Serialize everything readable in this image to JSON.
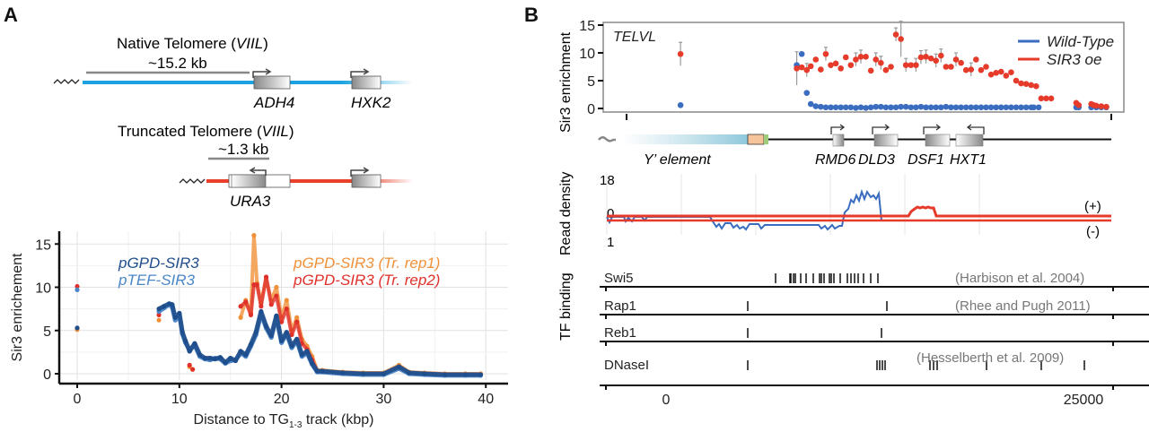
{
  "panel_a": {
    "label": "A",
    "native": {
      "title": "Native Telomere (",
      "title_ital": "VIIL",
      "title_end": ")",
      "distance": "~15.2 kb",
      "genes": [
        "ADH4",
        "HXK2"
      ],
      "color": "#1aa3e0"
    },
    "truncated": {
      "title": "Truncated Telomere (",
      "title_ital": "VIIL",
      "title_end": ")",
      "distance": "~1.3 kb",
      "genes": [
        "URA3"
      ],
      "color": "#e8402a"
    }
  },
  "panel_b": {
    "label": "B",
    "locus_label": "TELVL",
    "y_label_top": "Sir3 enrichment",
    "y_label_mid": "Read density",
    "y_label_bot": "TF binding",
    "legend": [
      {
        "name": "Wild-Type",
        "color": "#3a6dbf"
      },
      {
        "name": "SIR3 oe",
        "color": "#e63a2a"
      }
    ],
    "y_ticks_top": [
      "15",
      "10",
      "5",
      "0"
    ],
    "gene_map": {
      "y_element": "Y’ element",
      "genes": [
        "RMD6",
        "DLD3",
        "DSF1",
        "HXT1"
      ]
    },
    "read_density": {
      "ticks": [
        "18",
        "0",
        "1"
      ],
      "strand_plus": "(+)",
      "strand_minus": "(-)"
    },
    "tf_tracks": [
      {
        "name": "Swi5",
        "source": "(Harbison et al. 2004)"
      },
      {
        "name": "Rap1",
        "source": "(Rhee and Pugh 2011)"
      },
      {
        "name": "Reb1",
        "source": ""
      },
      {
        "name": "DNaseI",
        "source": "(Hesselberth et al. 2009)"
      }
    ],
    "x_ticks": [
      "0",
      "25000"
    ]
  },
  "chart_data": [
    {
      "type": "line",
      "title": "",
      "xlabel": "Distance to TG1-3 track (kbp)",
      "xlabel_main": "Distance to TG",
      "xlabel_sub": "1-3",
      "xlabel_end": " track (kbp)",
      "ylabel": "Sir3 enrichement",
      "xlim": [
        -2,
        42
      ],
      "ylim": [
        -1,
        16.5
      ],
      "x_ticks": [
        0,
        10,
        20,
        30,
        40
      ],
      "y_ticks": [
        0,
        5,
        10,
        15
      ],
      "grid": true,
      "legend": "inline",
      "series": [
        {
          "name": "pGPD-SIR3",
          "color": "#1f4e8c",
          "points": [
            [
              0,
              5.3
            ],
            [
              8,
              7.5
            ],
            [
              8.5,
              7.8
            ],
            [
              9,
              8.1
            ],
            [
              9.3,
              8.0
            ],
            [
              9.6,
              6.5
            ],
            [
              10,
              7.0
            ],
            [
              10.3,
              4.8
            ],
            [
              10.6,
              3.8
            ],
            [
              11,
              2.6
            ],
            [
              11.5,
              3.5
            ],
            [
              12,
              2.2
            ],
            [
              12.5,
              1.8
            ],
            [
              13,
              1.8
            ],
            [
              13.5,
              1.7
            ],
            [
              14,
              1.9
            ],
            [
              14.5,
              1.3
            ],
            [
              15,
              1.8
            ],
            [
              15.5,
              1.5
            ],
            [
              16,
              2.6
            ],
            [
              16.5,
              2.2
            ],
            [
              17,
              3.4
            ],
            [
              17.5,
              4.8
            ],
            [
              18,
              7.2
            ],
            [
              18.5,
              5.5
            ],
            [
              19,
              4.4
            ],
            [
              19.5,
              6.7
            ],
            [
              20,
              3.8
            ],
            [
              20.5,
              4.8
            ],
            [
              21,
              3.2
            ],
            [
              21.5,
              4.0
            ],
            [
              22,
              2.2
            ],
            [
              22.5,
              2.6
            ],
            [
              23,
              1.2
            ],
            [
              23.5,
              0.3
            ],
            [
              24,
              0.3
            ],
            [
              26,
              0.1
            ],
            [
              28,
              0.0
            ],
            [
              30,
              0.0
            ],
            [
              31.5,
              0.8
            ],
            [
              32.5,
              0.1
            ],
            [
              34,
              0.0
            ],
            [
              36,
              -0.1
            ],
            [
              38,
              -0.1
            ],
            [
              39.5,
              -0.1
            ]
          ]
        },
        {
          "name": "pTEF-SIR3",
          "color": "#4a86c8",
          "points": [
            [
              0,
              9.7
            ],
            [
              8,
              7.2
            ],
            [
              8.5,
              7.6
            ],
            [
              9,
              8.0
            ],
            [
              9.3,
              7.7
            ],
            [
              9.6,
              6.2
            ],
            [
              10,
              6.8
            ],
            [
              10.3,
              4.6
            ],
            [
              10.6,
              3.6
            ],
            [
              11,
              2.8
            ],
            [
              11.5,
              3.3
            ],
            [
              12,
              2.0
            ],
            [
              12.5,
              1.7
            ],
            [
              13,
              1.6
            ],
            [
              13.5,
              1.8
            ],
            [
              14,
              1.7
            ],
            [
              14.5,
              1.2
            ],
            [
              15,
              1.5
            ],
            [
              15.5,
              1.6
            ],
            [
              16,
              2.4
            ],
            [
              16.5,
              2.0
            ],
            [
              17,
              3.2
            ],
            [
              17.5,
              4.5
            ],
            [
              18,
              6.9
            ],
            [
              18.5,
              5.3
            ],
            [
              19,
              4.2
            ],
            [
              19.5,
              6.5
            ],
            [
              20,
              3.6
            ],
            [
              20.5,
              4.6
            ],
            [
              21,
              3.0
            ],
            [
              21.5,
              3.8
            ],
            [
              22,
              2.0
            ],
            [
              22.5,
              2.4
            ],
            [
              23,
              1.1
            ],
            [
              23.5,
              0.2
            ],
            [
              24,
              0.2
            ],
            [
              26,
              0.0
            ],
            [
              28,
              -0.1
            ],
            [
              30,
              -0.1
            ],
            [
              31.5,
              0.6
            ],
            [
              32.5,
              0.0
            ],
            [
              34,
              -0.1
            ],
            [
              36,
              -0.2
            ],
            [
              38,
              -0.2
            ],
            [
              39.5,
              -0.2
            ]
          ]
        },
        {
          "name": "pGPD-SIR3 (Tr. rep1)",
          "color": "#f0913a",
          "points": [
            [
              0,
              5.1
            ],
            [
              8,
              6.2
            ],
            [
              11,
              0.8
            ],
            [
              16,
              6.5
            ],
            [
              16.5,
              8.5
            ],
            [
              17,
              7.0
            ],
            [
              17.3,
              16.0
            ],
            [
              17.6,
              10.5
            ],
            [
              18,
              8.2
            ],
            [
              18.5,
              11.0
            ],
            [
              19,
              8.5
            ],
            [
              19.5,
              10.0
            ],
            [
              20,
              6.5
            ],
            [
              20.5,
              8.5
            ],
            [
              21,
              5.0
            ],
            [
              21.5,
              6.5
            ],
            [
              22,
              4.0
            ],
            [
              22.5,
              3.2
            ],
            [
              23,
              2.0
            ],
            [
              23.5,
              0.4
            ],
            [
              24,
              0.4
            ],
            [
              26,
              0.2
            ],
            [
              28,
              0.1
            ],
            [
              30,
              0.1
            ],
            [
              31.5,
              1.0
            ],
            [
              32.5,
              0.2
            ],
            [
              34,
              0.1
            ],
            [
              36,
              0.0
            ],
            [
              38,
              0.0
            ],
            [
              39.5,
              0.0
            ]
          ]
        },
        {
          "name": "pGPD-SIR3 (Tr. rep2)",
          "color": "#e0302a",
          "points": [
            [
              0,
              10.1
            ],
            [
              8,
              6.8
            ],
            [
              11,
              1.0
            ],
            [
              16,
              7.8
            ],
            [
              16.5,
              8.3
            ],
            [
              17,
              6.8
            ],
            [
              17.3,
              10.3
            ],
            [
              17.6,
              10.3
            ],
            [
              18,
              7.8
            ],
            [
              18.5,
              11.2
            ],
            [
              19,
              8.0
            ],
            [
              19.5,
              9.0
            ],
            [
              20,
              6.0
            ],
            [
              20.5,
              7.5
            ],
            [
              21,
              4.5
            ],
            [
              21.5,
              6.0
            ],
            [
              22,
              3.5
            ],
            [
              22.5,
              2.8
            ],
            [
              23,
              1.6
            ],
            [
              23.5,
              0.3
            ],
            [
              24,
              0.3
            ],
            [
              26,
              0.1
            ],
            [
              28,
              0.0
            ],
            [
              30,
              0.0
            ],
            [
              31.5,
              0.8
            ],
            [
              32.5,
              0.1
            ],
            [
              34,
              0.0
            ],
            [
              36,
              -0.1
            ],
            [
              38,
              -0.1
            ],
            [
              39.5,
              -0.1
            ]
          ]
        }
      ]
    },
    {
      "type": "scatter",
      "title": "TELVL",
      "xlabel": "",
      "ylabel": "Sir3 enrichment",
      "ylim": [
        0,
        15
      ],
      "y_ticks": [
        0,
        5,
        10,
        15
      ],
      "legend": "top-right",
      "series": [
        {
          "name": "Wild-Type",
          "color": "#3a6dbf",
          "x_frac": [
            0.14,
            0.372,
            0.382,
            0.392,
            0.4,
            0.41,
            0.42,
            0.43,
            0.44,
            0.45,
            0.46,
            0.47,
            0.48,
            0.49,
            0.5,
            0.51,
            0.52,
            0.53,
            0.54,
            0.55,
            0.56,
            0.57,
            0.58,
            0.59,
            0.6,
            0.61,
            0.62,
            0.63,
            0.64,
            0.65,
            0.66,
            0.67,
            0.68,
            0.69,
            0.7,
            0.71,
            0.72,
            0.73,
            0.74,
            0.75,
            0.76,
            0.77,
            0.78,
            0.79,
            0.8,
            0.81,
            0.82,
            0.83,
            0.84,
            0.845,
            0.855,
            0.93,
            0.935,
            0.96,
            0.97,
            0.98,
            0.99
          ],
          "values": [
            0.6,
            7.8,
            9.8,
            2.8,
            0.8,
            0.4,
            0.3,
            0.2,
            0.2,
            0.2,
            0.2,
            0.2,
            0.2,
            0.1,
            0.2,
            0.1,
            0.2,
            0.3,
            0.3,
            0.2,
            0.2,
            0.2,
            0.3,
            0.3,
            0.2,
            0.2,
            0.3,
            0.2,
            0.2,
            0.2,
            0.2,
            0.3,
            0.2,
            0.2,
            0.2,
            0.2,
            0.2,
            0.2,
            0.2,
            0.2,
            0.2,
            0.2,
            0.2,
            0.2,
            0.2,
            0.2,
            0.2,
            0.2,
            0.2,
            0.2,
            0.2,
            0.2,
            0.2,
            0.2,
            0.2,
            0.2,
            0.2
          ]
        },
        {
          "name": "SIR3 oe",
          "color": "#e63a2a",
          "x_frac": [
            0.14,
            0.372,
            0.382,
            0.392,
            0.4,
            0.41,
            0.42,
            0.43,
            0.44,
            0.45,
            0.46,
            0.47,
            0.48,
            0.49,
            0.5,
            0.51,
            0.52,
            0.53,
            0.54,
            0.55,
            0.56,
            0.57,
            0.58,
            0.59,
            0.6,
            0.61,
            0.62,
            0.63,
            0.64,
            0.65,
            0.66,
            0.67,
            0.68,
            0.69,
            0.7,
            0.71,
            0.72,
            0.73,
            0.74,
            0.75,
            0.76,
            0.77,
            0.78,
            0.79,
            0.8,
            0.81,
            0.82,
            0.83,
            0.84,
            0.85,
            0.86,
            0.87,
            0.88,
            0.93,
            0.935,
            0.96,
            0.965,
            0.97,
            0.98,
            0.99
          ],
          "values": [
            9.8,
            7.2,
            7.4,
            6.9,
            7.6,
            8.8,
            7.0,
            9.8,
            7.8,
            8.1,
            7.2,
            9.2,
            7.8,
            8.8,
            9.3,
            9.3,
            6.8,
            8.8,
            8.2,
            6.9,
            7.5,
            13.3,
            12.5,
            7.8,
            7.8,
            7.8,
            9.2,
            9.3,
            9.0,
            8.6,
            9.5,
            7.5,
            7.5,
            8.8,
            8.2,
            6.9,
            7.0,
            8.8,
            6.9,
            7.5,
            6.1,
            6.4,
            6.6,
            5.9,
            6.5,
            5.0,
            4.5,
            4.4,
            4.2,
            4.0,
            1.8,
            1.8,
            1.8,
            1.0,
            0.6,
            0.8,
            0.6,
            0.5,
            0.4,
            0.3
          ]
        }
      ]
    }
  ]
}
